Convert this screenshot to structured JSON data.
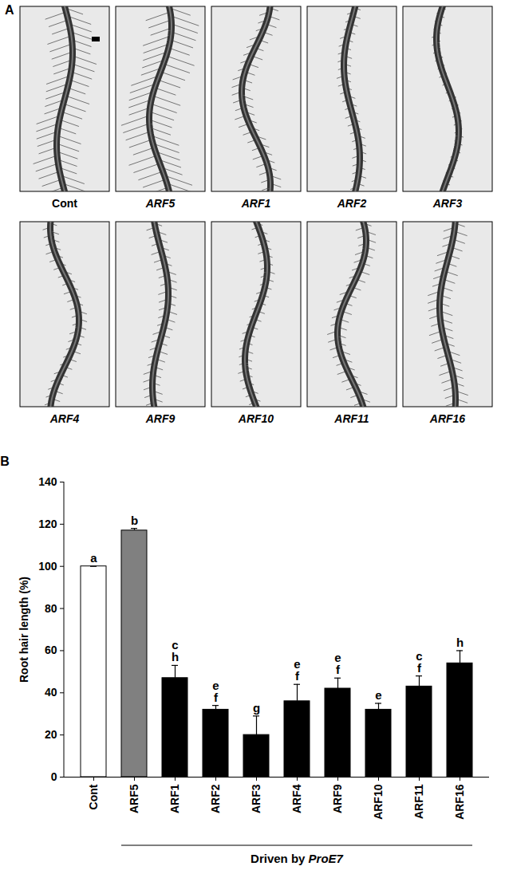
{
  "panel_a": {
    "label": "A",
    "image_labels": [
      "Cont",
      "ARF5",
      "ARF1",
      "ARF2",
      "ARF3",
      "ARF4",
      "ARF9",
      "ARF10",
      "ARF11",
      "ARF16"
    ]
  },
  "chart_data": {
    "type": "bar",
    "panel_label": "B",
    "y_label": "Root hair length (%)",
    "categories": [
      "Cont",
      "ARF5",
      "ARF1",
      "ARF2",
      "ARF3",
      "ARF4",
      "ARF9",
      "ARF10",
      "ARF11",
      "ARF16"
    ],
    "values": [
      100,
      117,
      47,
      32,
      20,
      36,
      42,
      32,
      43,
      54
    ],
    "errors": [
      0,
      1,
      6,
      2,
      9,
      8,
      5,
      3,
      5,
      6
    ],
    "significance_letters": [
      [
        "a"
      ],
      [
        "b"
      ],
      [
        "c",
        "h"
      ],
      [
        "e",
        "f"
      ],
      [
        "g"
      ],
      [
        "e",
        "f"
      ],
      [
        "e",
        "f"
      ],
      [
        "e"
      ],
      [
        "c",
        "f"
      ],
      [
        "h"
      ]
    ],
    "colors": [
      "#ffffff",
      "#808080",
      "#000000",
      "#000000",
      "#000000",
      "#000000",
      "#000000",
      "#000000",
      "#000000",
      "#000000"
    ],
    "group": {
      "label": "Driven by ProE7",
      "from": "ARF5",
      "to": "ARF16"
    },
    "ylim": [
      0,
      140
    ],
    "yticks": [
      0,
      20,
      40,
      60,
      80,
      100,
      120,
      140
    ],
    "grid": false
  }
}
